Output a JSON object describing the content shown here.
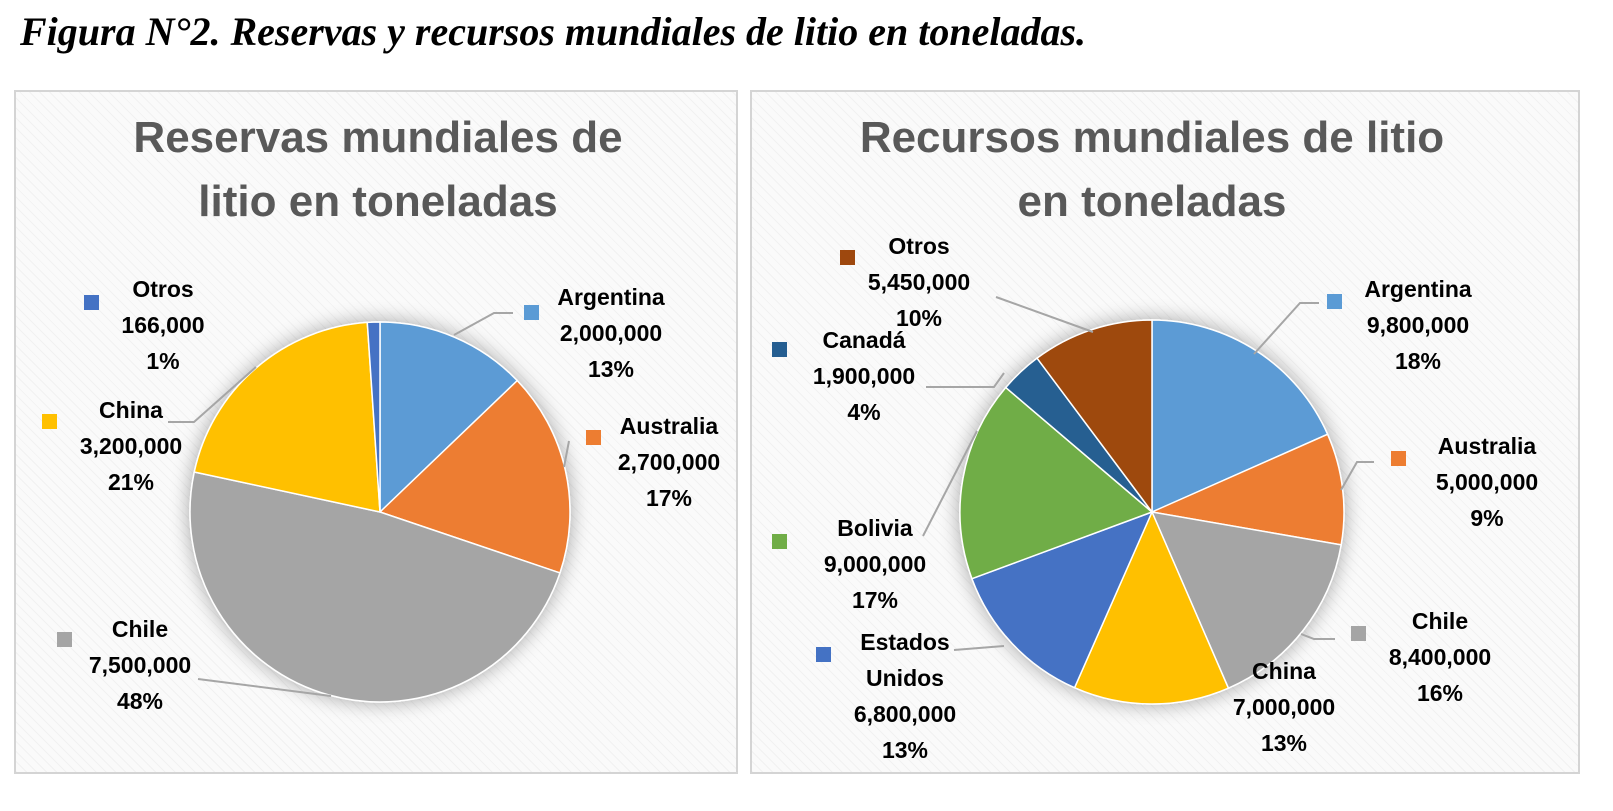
{
  "figure_title": "Figura N°2. Reservas y recursos mundiales de litio en toneladas.",
  "chart_data": [
    {
      "type": "pie",
      "title_lines": [
        "Reservas mundiales de",
        "litio en toneladas"
      ],
      "slices": [
        {
          "name": "Argentina",
          "value": 2000000,
          "value_text": "2,000,000",
          "percent": "13%",
          "color": "#5b9bd5"
        },
        {
          "name": "Australia",
          "value": 2700000,
          "value_text": "2,700,000",
          "percent": "17%",
          "color": "#ed7d31"
        },
        {
          "name": "Chile",
          "value": 7500000,
          "value_text": "7,500,000",
          "percent": "48%",
          "color": "#a5a5a5"
        },
        {
          "name": "China",
          "value": 3200000,
          "value_text": "3,200,000",
          "percent": "21%",
          "color": "#ffc000"
        },
        {
          "name": "Otros",
          "value": 166000,
          "value_text": "166,000",
          "percent": "1%",
          "color": "#4472c4"
        }
      ]
    },
    {
      "type": "pie",
      "title_lines": [
        "Recursos mundiales de litio",
        "en toneladas"
      ],
      "slices": [
        {
          "name": "Argentina",
          "value": 9800000,
          "value_text": "9,800,000",
          "percent": "18%",
          "color": "#5b9bd5"
        },
        {
          "name": "Australia",
          "value": 5000000,
          "value_text": "5,000,000",
          "percent": "9%",
          "color": "#ed7d31"
        },
        {
          "name": "Chile",
          "value": 8400000,
          "value_text": "8,400,000",
          "percent": "16%",
          "color": "#a5a5a5"
        },
        {
          "name": "China",
          "value": 7000000,
          "value_text": "7,000,000",
          "percent": "13%",
          "color": "#ffc000"
        },
        {
          "name": "Estados Unidos",
          "value": 6800000,
          "value_text": "6,800,000",
          "percent": "13%",
          "color": "#4472c4"
        },
        {
          "name": "Bolivia",
          "value": 9000000,
          "value_text": "9,000,000",
          "percent": "17%",
          "color": "#70ad47"
        },
        {
          "name": "Canadá",
          "value": 1900000,
          "value_text": "1,900,000",
          "percent": "4%",
          "color": "#255e91"
        },
        {
          "name": "Otros",
          "value": 5450000,
          "value_text": "5,450,000",
          "percent": "10%",
          "color": "#9e480e"
        }
      ]
    }
  ]
}
